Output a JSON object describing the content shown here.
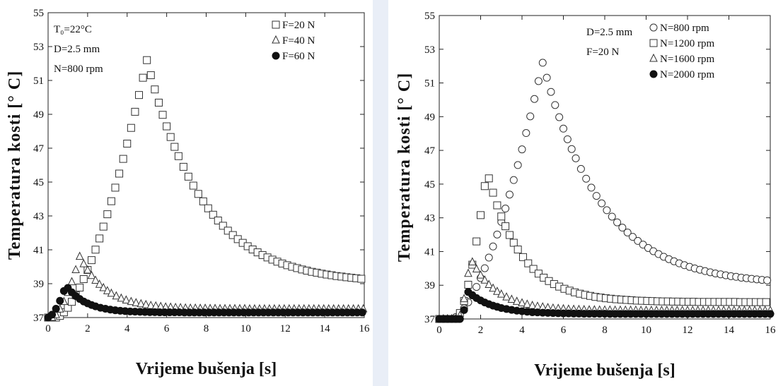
{
  "chart_data": [
    {
      "type": "scatter",
      "xlabel": "Vrijeme bušenja [s]",
      "ylabel": "Temperatura kosti [° C]",
      "xlim": [
        0,
        16
      ],
      "ylim": [
        37,
        55
      ],
      "x_ticks": [
        "0",
        "2",
        "4",
        "6",
        "8",
        "10",
        "12",
        "14",
        "16"
      ],
      "y_ticks": [
        "37",
        "39",
        "41",
        "43",
        "45",
        "47",
        "49",
        "51",
        "53",
        "55"
      ],
      "grid": false,
      "legend_position": "top-right",
      "annotations": [
        "T₀=22°C",
        "D=2.5 mm",
        "N=800 rpm"
      ],
      "series": [
        {
          "name": "F=20 N",
          "marker": "square",
          "peak_x": 5.0,
          "peak_y": 52.2
        },
        {
          "name": "F=40 N",
          "marker": "triangle",
          "peak_x": 1.6,
          "peak_y": 40.6
        },
        {
          "name": "F=60 N",
          "marker": "circle-filled",
          "peak_x": 0.9,
          "peak_y": 38.9
        }
      ]
    },
    {
      "type": "scatter",
      "xlabel": "Vrijeme bušenja [s]",
      "ylabel": "Temperatura kosti [° C]",
      "xlim": [
        0,
        16
      ],
      "ylim": [
        37,
        55
      ],
      "x_ticks": [
        "0",
        "2",
        "4",
        "6",
        "8",
        "10",
        "12",
        "14",
        "16"
      ],
      "y_ticks": [
        "37",
        "39",
        "41",
        "43",
        "45",
        "47",
        "49",
        "51",
        "53",
        "55"
      ],
      "grid": false,
      "legend_position": "top-right",
      "annotations": [
        "D=2.5 mm",
        "F=20 N"
      ],
      "series": [
        {
          "name": "N=800  rpm",
          "marker": "circle",
          "peak_x": 5.0,
          "peak_y": 52.2
        },
        {
          "name": "N=1200 rpm",
          "marker": "square",
          "peak_x": 2.3,
          "peak_y": 45.8
        },
        {
          "name": "N=1600 rpm",
          "marker": "triangle",
          "peak_x": 1.5,
          "peak_y": 40.6
        },
        {
          "name": "N=2000 rpm",
          "marker": "circle-filled",
          "peak_x": 1.4,
          "peak_y": 38.6
        }
      ]
    }
  ]
}
